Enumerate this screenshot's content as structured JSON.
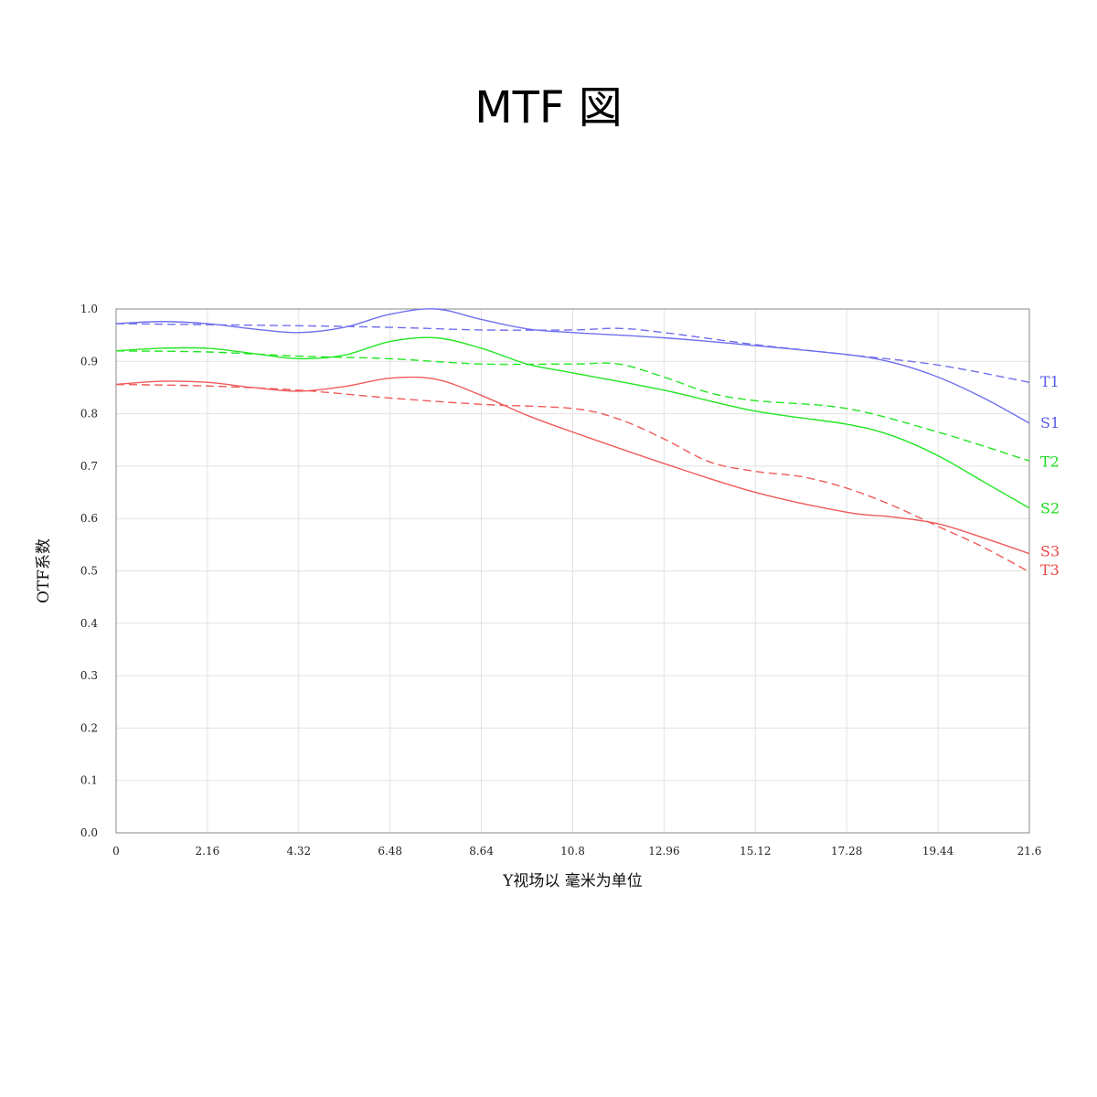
{
  "title": "MTF 図",
  "chart_data": {
    "type": "line",
    "xlabel": "Y视场以 毫米为单位",
    "ylabel": "OTF系数",
    "xlim": [
      0,
      21.6
    ],
    "ylim": [
      0,
      1.0
    ],
    "x_ticks": [
      "0",
      "2.16",
      "4.32",
      "6.48",
      "8.64",
      "10.8",
      "12.96",
      "15.12",
      "17.28",
      "19.44",
      "21.6"
    ],
    "y_ticks": [
      "0.0",
      "0.1",
      "0.2",
      "0.3",
      "0.4",
      "0.5",
      "0.6",
      "0.7",
      "0.8",
      "0.9",
      "1.0"
    ],
    "grid": true,
    "series": [
      {
        "name": "T1",
        "color": "#6f6fee",
        "dash": true,
        "x": [
          0,
          2.16,
          4.32,
          6.48,
          8.64,
          10.8,
          11.88,
          12.96,
          15.12,
          17.28,
          19.44,
          21.6
        ],
        "y": [
          0.972,
          0.97,
          0.968,
          0.965,
          0.96,
          0.96,
          0.963,
          0.955,
          0.932,
          0.913,
          0.893,
          0.86
        ]
      },
      {
        "name": "S1",
        "color": "#6f6fee",
        "dash": false,
        "x": [
          0,
          1.08,
          2.16,
          3.24,
          4.32,
          5.4,
          6.48,
          7.56,
          8.64,
          9.72,
          10.8,
          12.96,
          15.12,
          17.28,
          18.36,
          19.44,
          20.52,
          21.6
        ],
        "y": [
          0.972,
          0.976,
          0.972,
          0.962,
          0.955,
          0.965,
          0.99,
          1.0,
          0.98,
          0.962,
          0.955,
          0.945,
          0.93,
          0.913,
          0.898,
          0.87,
          0.83,
          0.782
        ]
      },
      {
        "name": "T2",
        "color": "#22e622",
        "dash": true,
        "x": [
          0,
          2.16,
          4.32,
          6.48,
          8.64,
          10.8,
          11.88,
          12.96,
          14.04,
          15.12,
          17.28,
          19.44,
          21.6
        ],
        "y": [
          0.92,
          0.918,
          0.91,
          0.905,
          0.895,
          0.895,
          0.895,
          0.87,
          0.84,
          0.825,
          0.81,
          0.765,
          0.71
        ]
      },
      {
        "name": "S2",
        "color": "#22e622",
        "dash": false,
        "x": [
          0,
          1.08,
          2.16,
          3.24,
          4.32,
          5.4,
          6.48,
          7.56,
          8.64,
          9.72,
          10.8,
          12.96,
          15.12,
          17.28,
          18.36,
          19.44,
          20.52,
          21.6
        ],
        "y": [
          0.92,
          0.925,
          0.925,
          0.915,
          0.905,
          0.912,
          0.938,
          0.945,
          0.925,
          0.895,
          0.878,
          0.845,
          0.805,
          0.78,
          0.758,
          0.72,
          0.67,
          0.62
        ]
      },
      {
        "name": "S3",
        "color": "#f05a5a",
        "dash": false,
        "x": [
          0,
          1.08,
          2.16,
          3.24,
          4.32,
          5.4,
          6.48,
          7.56,
          8.64,
          9.72,
          10.8,
          12.96,
          15.12,
          17.28,
          18.36,
          19.44,
          20.52,
          21.6
        ],
        "y": [
          0.856,
          0.862,
          0.86,
          0.85,
          0.843,
          0.852,
          0.868,
          0.866,
          0.835,
          0.797,
          0.765,
          0.705,
          0.65,
          0.612,
          0.603,
          0.59,
          0.563,
          0.533
        ]
      },
      {
        "name": "T3",
        "color": "#f05a5a",
        "dash": true,
        "x": [
          0,
          2.16,
          4.32,
          6.48,
          8.64,
          10.8,
          11.88,
          12.96,
          14.04,
          15.12,
          16.2,
          17.28,
          18.36,
          19.44,
          20.52,
          21.6
        ],
        "y": [
          0.856,
          0.853,
          0.845,
          0.83,
          0.818,
          0.81,
          0.79,
          0.752,
          0.708,
          0.69,
          0.68,
          0.658,
          0.625,
          0.585,
          0.545,
          0.498
        ]
      }
    ],
    "label_positions_note": "",
    "end_labels": [
      {
        "text": "T1",
        "color": "#5858e8",
        "y": 0.86
      },
      {
        "text": "S1",
        "color": "#5858e8",
        "y": 0.782
      },
      {
        "text": "T2",
        "color": "#18d818",
        "y": 0.708
      },
      {
        "text": "S2",
        "color": "#18d818",
        "y": 0.619
      },
      {
        "text": "S3",
        "color": "#ee4444",
        "y": 0.537
      },
      {
        "text": "T3",
        "color": "#ee4444",
        "y": 0.501
      }
    ]
  }
}
